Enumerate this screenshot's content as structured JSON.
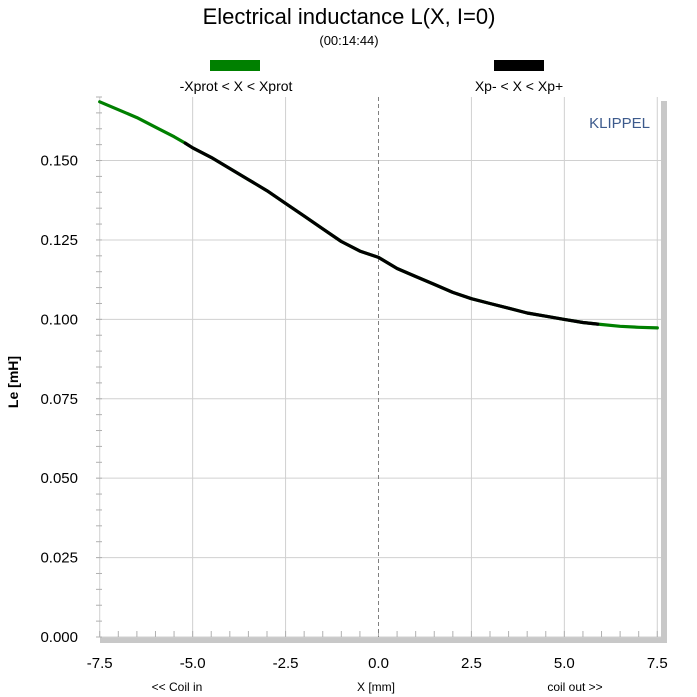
{
  "chart_data": {
    "type": "line",
    "title": "Electrical inductance L(X, I=0)",
    "subtitle": "(00:14:44)",
    "xlabel": "X [mm]",
    "ylabel": "Le [mH]",
    "x_left_note": "<< Coil in",
    "x_right_note": "coil out >>",
    "watermark": "KLIPPEL",
    "xlim": [
      -7.6,
      7.6
    ],
    "ylim": [
      0.0,
      0.17
    ],
    "xticks": [
      "-7.5",
      "-5.0",
      "-2.5",
      "0.0",
      "2.5",
      "5.0",
      "7.5"
    ],
    "yticks": [
      "0.000",
      "0.025",
      "0.050",
      "0.075",
      "0.100",
      "0.125",
      "0.150"
    ],
    "grid": true,
    "legend_position": "top",
    "legend": [
      {
        "label": "-Xprot < X < Xprot",
        "color": "#008000"
      },
      {
        "label": "Xp- < X < Xp+",
        "color": "#000000"
      }
    ],
    "series": [
      {
        "color": "#008000",
        "x": [
          -7.5,
          -7.0,
          -6.5,
          -6.0,
          -5.5,
          -5.2,
          -5.0,
          -4.5,
          -4.0,
          -3.5,
          -3.0,
          -2.5,
          -2.0,
          -1.5,
          -1.0,
          -0.5,
          0.0,
          0.5,
          1.0,
          1.5,
          2.0,
          2.5,
          3.0,
          3.5,
          4.0,
          4.5,
          5.0,
          5.5,
          5.9,
          6.5,
          7.0,
          7.5
        ],
        "y": [
          0.1685,
          0.166,
          0.1635,
          0.1605,
          0.1575,
          0.1555,
          0.154,
          0.151,
          0.1475,
          0.144,
          0.1405,
          0.1365,
          0.1325,
          0.1285,
          0.1245,
          0.1215,
          0.1195,
          0.116,
          0.1135,
          0.111,
          0.1085,
          0.1065,
          0.105,
          0.1035,
          0.102,
          0.101,
          0.1,
          0.099,
          0.0985,
          0.0978,
          0.0975,
          0.0973
        ]
      },
      {
        "color": "#000000",
        "x": [
          -5.2,
          -5.0,
          -4.5,
          -4.0,
          -3.5,
          -3.0,
          -2.5,
          -2.0,
          -1.5,
          -1.0,
          -0.5,
          0.0,
          0.5,
          1.0,
          1.5,
          2.0,
          2.5,
          3.0,
          3.5,
          4.0,
          4.5,
          5.0,
          5.5,
          5.9
        ],
        "y": [
          0.1555,
          0.154,
          0.151,
          0.1475,
          0.144,
          0.1405,
          0.1365,
          0.1325,
          0.1285,
          0.1245,
          0.1215,
          0.1195,
          0.116,
          0.1135,
          0.111,
          0.1085,
          0.1065,
          0.105,
          0.1035,
          0.102,
          0.101,
          0.1,
          0.099,
          0.0985
        ]
      }
    ]
  }
}
